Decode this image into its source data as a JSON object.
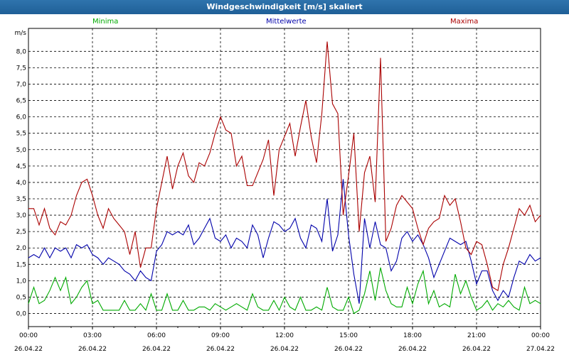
{
  "window": {
    "title": "Windgeschwindigkeit [m/s] skaliert"
  },
  "chart_data": {
    "type": "line",
    "title": "Windgeschwindigkeit [m/s] skaliert",
    "ylabel": "m/s",
    "ylim": [
      -0.4,
      8.7
    ],
    "yticks": [
      "0,0",
      "0,5",
      "1,0",
      "1,5",
      "2,0",
      "2,5",
      "3,0",
      "3,5",
      "4,0",
      "4,5",
      "5,0",
      "5,5",
      "6,0",
      "6,5",
      "7,0",
      "7,5",
      "8,0"
    ],
    "xticks": [
      {
        "time": "00:00",
        "date": "26.04.22"
      },
      {
        "time": "03:00",
        "date": "26.04.22"
      },
      {
        "time": "06:00",
        "date": "26.04.22"
      },
      {
        "time": "09:00",
        "date": "26.04.22"
      },
      {
        "time": "12:00",
        "date": "26.04.22"
      },
      {
        "time": "15:00",
        "date": "26.04.22"
      },
      {
        "time": "18:00",
        "date": "26.04.22"
      },
      {
        "time": "21:00",
        "date": "26.04.22"
      },
      {
        "time": "00:00",
        "date": "27.04.22"
      }
    ],
    "grid": true,
    "legend_position": "top",
    "x_hours": [
      0,
      0.25,
      0.5,
      0.75,
      1,
      1.25,
      1.5,
      1.75,
      2,
      2.25,
      2.5,
      2.75,
      3,
      3.25,
      3.5,
      3.75,
      4,
      4.25,
      4.5,
      4.75,
      5,
      5.25,
      5.5,
      5.75,
      6,
      6.25,
      6.5,
      6.75,
      7,
      7.25,
      7.5,
      7.75,
      8,
      8.25,
      8.5,
      8.75,
      9,
      9.25,
      9.5,
      9.75,
      10,
      10.25,
      10.5,
      10.75,
      11,
      11.25,
      11.5,
      11.75,
      12,
      12.25,
      12.5,
      12.75,
      13,
      13.25,
      13.5,
      13.75,
      14,
      14.25,
      14.5,
      14.75,
      15,
      15.25,
      15.5,
      15.75,
      16,
      16.25,
      16.5,
      16.75,
      17,
      17.25,
      17.5,
      17.75,
      18,
      18.25,
      18.5,
      18.75,
      19,
      19.25,
      19.5,
      19.75,
      20,
      20.25,
      20.5,
      20.75,
      21,
      21.25,
      21.5,
      21.75,
      22,
      22.25,
      22.5,
      22.75,
      23,
      23.25,
      23.5,
      23.75,
      24
    ],
    "series": [
      {
        "name": "Minima",
        "color": "#00aa00",
        "values": [
          0.3,
          0.8,
          0.3,
          0.4,
          0.7,
          1.1,
          0.7,
          1.1,
          0.3,
          0.5,
          0.8,
          1.0,
          0.3,
          0.4,
          0.1,
          0.1,
          0.1,
          0.1,
          0.4,
          0.1,
          0.1,
          0.3,
          0.1,
          0.6,
          0.1,
          0.1,
          0.6,
          0.1,
          0.1,
          0.4,
          0.1,
          0.1,
          0.2,
          0.2,
          0.1,
          0.3,
          0.2,
          0.1,
          0.2,
          0.3,
          0.2,
          0.1,
          0.6,
          0.2,
          0.1,
          0.1,
          0.4,
          0.1,
          0.5,
          0.2,
          0.1,
          0.5,
          0.1,
          0.1,
          0.2,
          0.1,
          0.8,
          0.2,
          0.1,
          0.1,
          0.5,
          0.0,
          0.1,
          0.6,
          1.3,
          0.4,
          1.4,
          0.7,
          0.3,
          0.2,
          0.2,
          0.8,
          0.3,
          0.9,
          1.3,
          0.3,
          0.7,
          0.2,
          0.3,
          0.2,
          1.2,
          0.6,
          1.0,
          0.5,
          0.1,
          0.2,
          0.4,
          0.1,
          0.3,
          0.2,
          0.4,
          0.2,
          0.1,
          0.8,
          0.3,
          0.4,
          0.3
        ]
      },
      {
        "name": "Mittelwerte",
        "color": "#0000aa",
        "values": [
          1.7,
          1.8,
          1.7,
          2.0,
          1.7,
          2.0,
          1.9,
          2.0,
          1.7,
          2.1,
          2.0,
          2.1,
          1.8,
          1.7,
          1.5,
          1.7,
          1.6,
          1.5,
          1.3,
          1.2,
          1.0,
          1.3,
          1.1,
          1.0,
          1.9,
          2.1,
          2.5,
          2.4,
          2.5,
          2.4,
          2.7,
          2.1,
          2.3,
          2.6,
          2.9,
          2.3,
          2.2,
          2.4,
          2.0,
          2.3,
          2.2,
          2.0,
          2.7,
          2.4,
          1.7,
          2.3,
          2.8,
          2.7,
          2.5,
          2.6,
          2.9,
          2.3,
          2.0,
          2.7,
          2.6,
          2.2,
          3.5,
          1.9,
          2.4,
          4.1,
          2.4,
          1.2,
          0.3,
          2.9,
          2.0,
          2.8,
          2.1,
          2.0,
          1.3,
          1.6,
          2.3,
          2.5,
          2.2,
          2.4,
          2.1,
          1.7,
          1.1,
          1.5,
          1.9,
          2.3,
          2.2,
          2.1,
          2.2,
          1.6,
          0.9,
          1.3,
          1.3,
          0.7,
          0.4,
          0.7,
          0.5,
          1.1,
          1.6,
          1.5,
          1.8,
          1.6,
          1.7
        ]
      },
      {
        "name": "Maxima",
        "color": "#aa0000",
        "values": [
          3.2,
          3.2,
          2.7,
          3.2,
          2.6,
          2.4,
          2.8,
          2.7,
          3.0,
          3.6,
          4.0,
          4.1,
          3.6,
          3.0,
          2.6,
          3.2,
          2.9,
          2.7,
          2.5,
          1.8,
          2.5,
          1.4,
          2.0,
          2.0,
          3.2,
          4.0,
          4.8,
          3.8,
          4.5,
          4.9,
          4.2,
          4.0,
          4.6,
          4.5,
          4.9,
          5.5,
          6.0,
          5.6,
          5.5,
          4.5,
          4.8,
          3.9,
          3.9,
          4.3,
          4.7,
          5.3,
          3.6,
          5.0,
          5.4,
          5.8,
          4.8,
          5.7,
          6.5,
          5.4,
          4.6,
          6.1,
          8.3,
          6.4,
          6.1,
          3.0,
          4.2,
          5.5,
          2.5,
          4.3,
          4.8,
          3.4,
          7.8,
          2.2,
          2.6,
          3.3,
          3.6,
          3.4,
          3.2,
          2.6,
          2.1,
          2.6,
          2.8,
          2.9,
          3.6,
          3.3,
          3.5,
          2.8,
          2.0,
          1.8,
          2.2,
          2.1,
          1.5,
          0.8,
          0.7,
          1.5,
          2.0,
          2.6,
          3.2,
          3.0,
          3.3,
          2.8,
          3.0
        ]
      }
    ]
  }
}
